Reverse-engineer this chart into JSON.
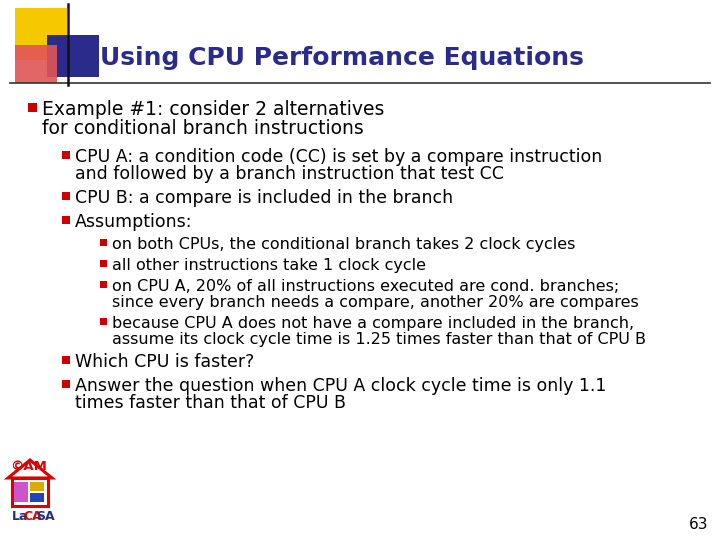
{
  "title": "Using CPU Performance Equations",
  "title_color": "#2b2b8b",
  "title_fontsize": 18,
  "bg_color": "#ffffff",
  "slide_number": "63",
  "bullet_color": "#cc0000",
  "text_color": "#000000",
  "header_line_color": "#333333",
  "content": [
    {
      "level": 0,
      "text": "Example #1: consider 2 alternatives\nfor conditional branch instructions"
    },
    {
      "level": 1,
      "text": "CPU A: a condition code (CC) is set by a compare instruction\nand followed by a branch instruction that test CC"
    },
    {
      "level": 1,
      "text": "CPU B: a compare is included in the branch"
    },
    {
      "level": 1,
      "text": "Assumptions:"
    },
    {
      "level": 2,
      "text": "on both CPUs, the conditional branch takes 2 clock cycles"
    },
    {
      "level": 2,
      "text": "all other instructions take 1 clock cycle"
    },
    {
      "level": 2,
      "text": "on CPU A, 20% of all instructions executed are cond. branches;\nsince every branch needs a compare, another 20% are compares"
    },
    {
      "level": 2,
      "text": "because CPU A does not have a compare included in the branch,\nassume its clock cycle time is 1.25 times faster than that of CPU B"
    },
    {
      "level": 1,
      "text": "Which CPU is faster?"
    },
    {
      "level": 1,
      "text": "Answer the question when CPU A clock cycle time is only 1.1\ntimes faster than that of CPU B"
    }
  ],
  "indent_x": {
    "0": 28,
    "1": 62,
    "2": 100
  },
  "bullet_w": {
    "0": 9,
    "1": 8,
    "2": 7
  },
  "font_size": {
    "0": 13.5,
    "1": 12.5,
    "2": 11.5
  },
  "line_height": {
    "0": 19,
    "1": 17,
    "2": 16
  },
  "gap_after": {
    "0": 10,
    "1": 7,
    "2": 5
  }
}
